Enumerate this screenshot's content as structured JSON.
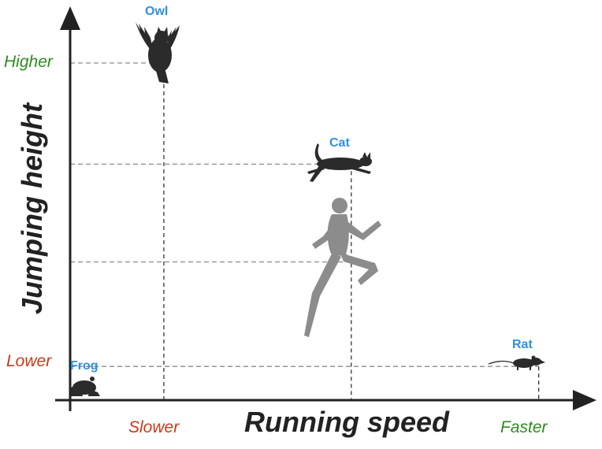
{
  "chart_data": {
    "type": "scatter",
    "xlabel": "Running speed",
    "ylabel": "Jumping height",
    "x_ticks": {
      "low": "Slower",
      "high": "Faster"
    },
    "y_ticks": {
      "low": "Lower",
      "high": "Higher"
    },
    "xlim": [
      0,
      1
    ],
    "ylim": [
      0,
      1
    ],
    "grid": false,
    "points": [
      {
        "name": "Owl",
        "x": 0.19,
        "y": 1.0,
        "labeled": true,
        "icon": "owl-silhouette"
      },
      {
        "name": "Cat",
        "x": 0.57,
        "y": 0.7,
        "labeled": true,
        "icon": "cat-silhouette"
      },
      {
        "name": "",
        "x": 0.57,
        "y": 0.41,
        "labeled": false,
        "icon": "human-runner-silhouette"
      },
      {
        "name": "Rat",
        "x": 0.95,
        "y": 0.1,
        "labeled": true,
        "icon": "rat-silhouette"
      },
      {
        "name": "Frog",
        "x": 0.0,
        "y": 0.0,
        "labeled": true,
        "icon": "frog-silhouette"
      }
    ]
  },
  "colors": {
    "axis": "#222222",
    "guide": "#8a8a8a",
    "animal_label": "#2f8fe0",
    "low_word": "#c8391a",
    "high_word": "#2e8b1e",
    "silhouette": "#2b2b2b",
    "human": "#8c8c8c"
  }
}
